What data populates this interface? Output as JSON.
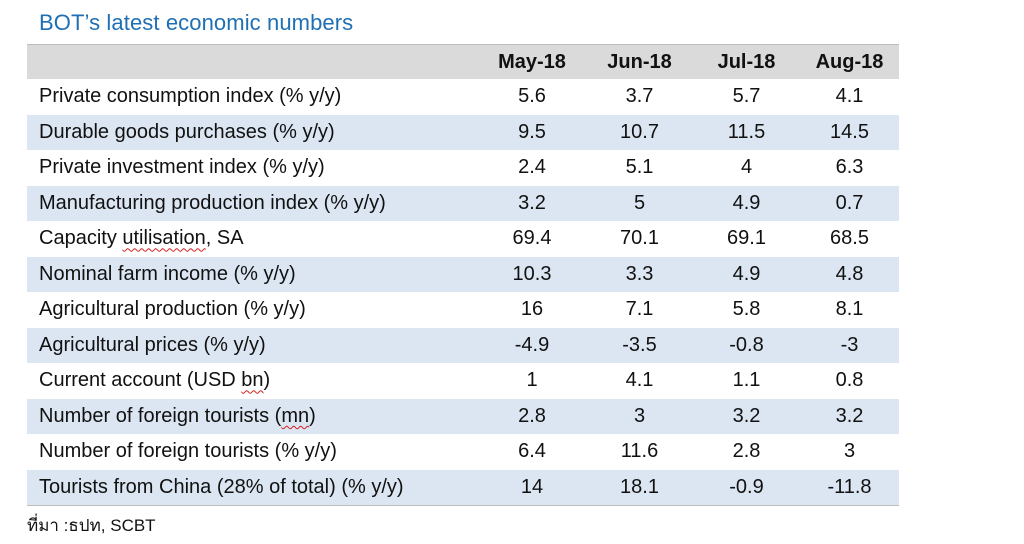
{
  "title": "BOT’s latest economic numbers",
  "columns": [
    "May-18",
    "Jun-18",
    "Jul-18",
    "Aug-18"
  ],
  "rows": [
    {
      "label_parts": [
        "Private consumption index (% y/y)"
      ],
      "values": [
        "5.6",
        "3.7",
        "5.7",
        "4.1"
      ]
    },
    {
      "label_parts": [
        "Durable goods purchases (% y/y)"
      ],
      "values": [
        "9.5",
        "10.7",
        "11.5",
        "14.5"
      ]
    },
    {
      "label_parts": [
        "Private investment index (% y/y)"
      ],
      "values": [
        "2.4",
        "5.1",
        "4",
        "6.3"
      ]
    },
    {
      "label_parts": [
        "Manufacturing production index (% y/y)"
      ],
      "values": [
        "3.2",
        "5",
        "4.9",
        "0.7"
      ]
    },
    {
      "label_parts": [
        "Capacity ",
        "utilisation",
        ", SA"
      ],
      "values": [
        "69.4",
        "70.1",
        "69.1",
        "68.5"
      ]
    },
    {
      "label_parts": [
        "Nominal farm income (% y/y)"
      ],
      "values": [
        "10.3",
        "3.3",
        "4.9",
        "4.8"
      ]
    },
    {
      "label_parts": [
        "Agricultural production (% y/y)"
      ],
      "values": [
        "16",
        "7.1",
        "5.8",
        "8.1"
      ]
    },
    {
      "label_parts": [
        "Agricultural prices (% y/y)"
      ],
      "values": [
        "-4.9",
        "-3.5",
        "-0.8",
        "-3"
      ]
    },
    {
      "label_parts": [
        "Current account (USD ",
        "bn",
        ")"
      ],
      "values": [
        "1",
        "4.1",
        "1.1",
        "0.8"
      ]
    },
    {
      "label_parts": [
        "Number of foreign tourists (",
        "mn",
        ")"
      ],
      "values": [
        "2.8",
        "3",
        "3.2",
        "3.2"
      ]
    },
    {
      "label_parts": [
        "Number of foreign tourists (% y/y)"
      ],
      "values": [
        "6.4",
        "11.6",
        "2.8",
        "3"
      ]
    },
    {
      "label_parts": [
        "Tourists from China (28% of total) (% y/y)"
      ],
      "values": [
        "14",
        "18.1",
        "-0.9",
        "-11.8"
      ]
    }
  ],
  "source": "ที่มา :ธปท, SCBT",
  "colors": {
    "title": "#1f6fb4",
    "header_bg": "#dadada",
    "shaded_row_bg": "#dce6f2"
  }
}
